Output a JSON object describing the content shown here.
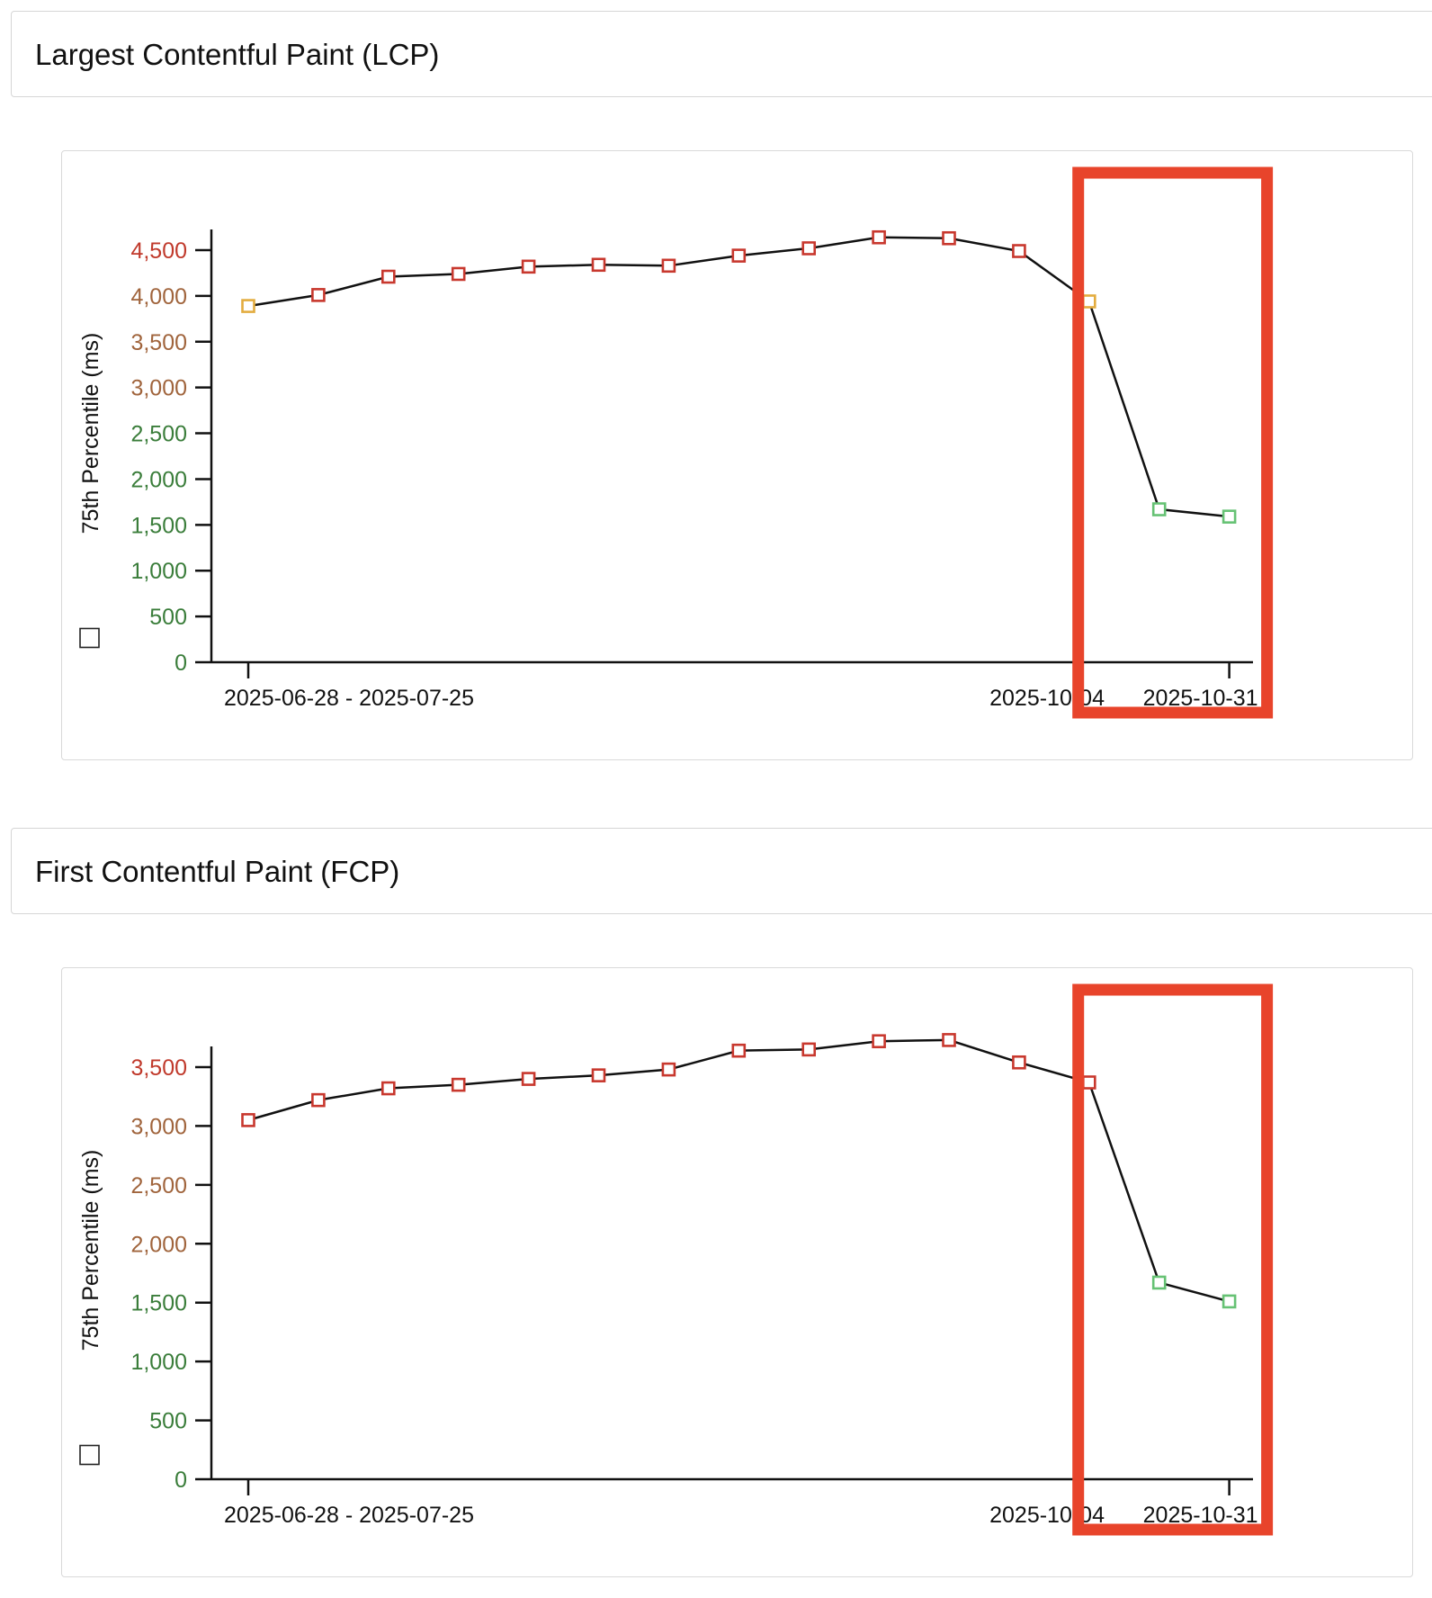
{
  "colors": {
    "good": "#3a7d3a",
    "needs_improvement": "#a0643c",
    "poor": "#c0392b",
    "marker_good": "#66c274",
    "marker_needs_improvement": "#e3ac3f",
    "marker_poor": "#c8382e",
    "line": "#111111",
    "highlight": "#e8442b"
  },
  "sections": [
    {
      "title": "Largest Contentful Paint (LCP)",
      "ylabel": "75th Percentile (ms)",
      "chart_data": {
        "type": "line",
        "title": "",
        "ylabel": "75th Percentile (ms)",
        "ylim": [
          0,
          4600
        ],
        "yticks": [
          0,
          500,
          1000,
          1500,
          2000,
          2500,
          3000,
          3500,
          4000,
          4500
        ],
        "ytick_labels": [
          "0",
          "500",
          "1,000",
          "1,500",
          "2,000",
          "2,500",
          "3,000",
          "3,500",
          "4,000",
          "4,500"
        ],
        "ytick_ratings": [
          "good",
          "good",
          "good",
          "good",
          "good",
          "good",
          "needs_improvement",
          "needs_improvement",
          "needs_improvement",
          "poor"
        ],
        "x_tick_labels": [
          {
            "index": 0,
            "text": "2025-06-28 - 2025-07-25"
          },
          {
            "index": 13,
            "text": "2025-10-04"
          },
          {
            "index": 14,
            "text": "2025-10-31"
          }
        ],
        "x": [
          0,
          1,
          2,
          3,
          4,
          5,
          6,
          7,
          8,
          9,
          10,
          11,
          12,
          13,
          14
        ],
        "values": [
          3890,
          4010,
          4210,
          4240,
          4320,
          4340,
          4330,
          4440,
          4520,
          4640,
          4630,
          4490,
          3940,
          1670,
          1590
        ],
        "ratings": [
          "needs_improvement",
          "poor",
          "poor",
          "poor",
          "poor",
          "poor",
          "poor",
          "poor",
          "poor",
          "poor",
          "poor",
          "poor",
          "needs_improvement",
          "good",
          "good"
        ],
        "grid": false,
        "highlight_range": [
          13,
          14
        ]
      }
    },
    {
      "title": "First Contentful Paint (FCP)",
      "ylabel": "75th Percentile (ms)",
      "chart_data": {
        "type": "line",
        "title": "",
        "ylabel": "75th Percentile (ms)",
        "ylim": [
          0,
          3700
        ],
        "yticks": [
          0,
          500,
          1000,
          1500,
          2000,
          2500,
          3000,
          3500
        ],
        "ytick_labels": [
          "0",
          "500",
          "1,000",
          "1,500",
          "2,000",
          "2,500",
          "3,000",
          "3,500"
        ],
        "ytick_ratings": [
          "good",
          "good",
          "good",
          "good",
          "needs_improvement",
          "needs_improvement",
          "needs_improvement",
          "poor"
        ],
        "x_tick_labels": [
          {
            "index": 0,
            "text": "2025-06-28 - 2025-07-25"
          },
          {
            "index": 13,
            "text": "2025-10-04"
          },
          {
            "index": 14,
            "text": "2025-10-31"
          }
        ],
        "x": [
          0,
          1,
          2,
          3,
          4,
          5,
          6,
          7,
          8,
          9,
          10,
          11,
          12,
          13,
          14
        ],
        "values": [
          3050,
          3220,
          3320,
          3350,
          3400,
          3430,
          3480,
          3640,
          3650,
          3720,
          3730,
          3540,
          3370,
          1670,
          1510
        ],
        "ratings": [
          "poor",
          "poor",
          "poor",
          "poor",
          "poor",
          "poor",
          "poor",
          "poor",
          "poor",
          "poor",
          "poor",
          "poor",
          "poor",
          "good",
          "good"
        ],
        "grid": false,
        "highlight_range": [
          13,
          14
        ]
      }
    }
  ]
}
